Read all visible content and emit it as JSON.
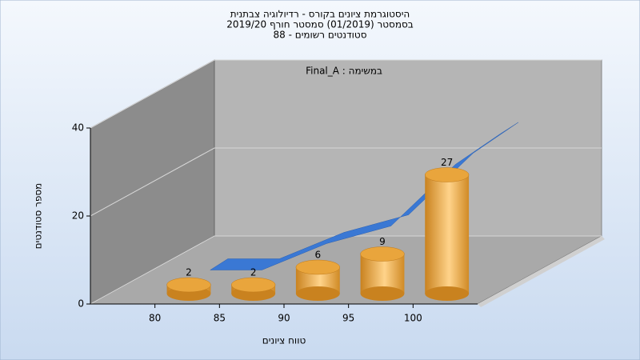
{
  "chart_data": {
    "type": "histogram",
    "title": [
      "היסטוגרמת ציונים בקורס - רדיולוגיה צבתנית",
      "בסמסטר  (01/2019)  סמסטר חורף 2019/20",
      "סטודנטים רשומים - 88"
    ],
    "annotation": "במשימה : Final_A",
    "xlabel": "טווח ציונים",
    "ylabel": "מספר סטודנטים",
    "bins": [
      80,
      85,
      90,
      95,
      100,
      105
    ],
    "counts": [
      2,
      2,
      6,
      9,
      27
    ],
    "color": "#e9a53c",
    "xlim": [
      75,
      105
    ],
    "xticks": [
      80,
      85,
      90,
      95,
      100
    ],
    "ylim": [
      0,
      40
    ],
    "yticks": [
      0,
      20,
      40
    ],
    "grid": true,
    "curve": {
      "x": [
        81,
        85,
        90,
        95,
        100,
        103.5
      ],
      "values": [
        3,
        3,
        9,
        13,
        27,
        34
      ],
      "color": "#3a78d4"
    }
  }
}
